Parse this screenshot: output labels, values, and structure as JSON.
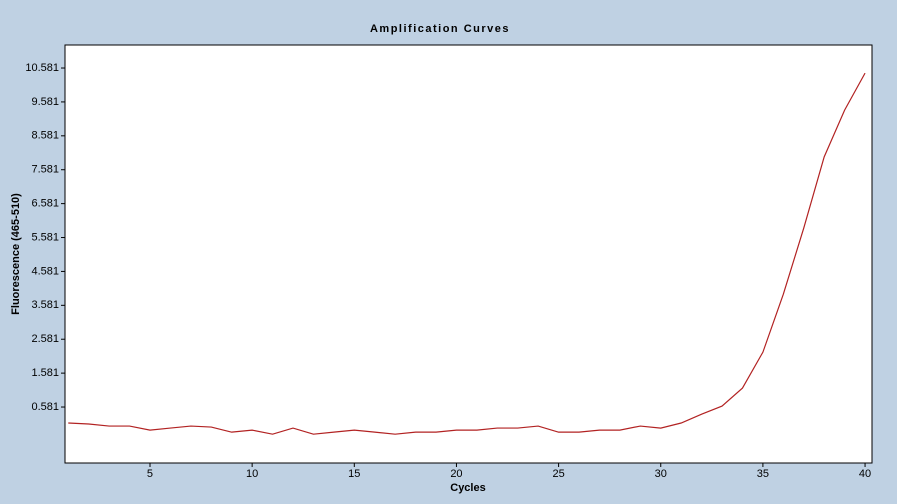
{
  "chart_data": {
    "type": "line",
    "title": "Amplification Curves",
    "x_label": "Cycles",
    "y_label": "Fluorescence (465-510)",
    "x": [
      1,
      2,
      3,
      4,
      5,
      6,
      7,
      8,
      9,
      10,
      11,
      12,
      13,
      14,
      15,
      16,
      17,
      18,
      19,
      20,
      21,
      22,
      23,
      24,
      25,
      26,
      27,
      28,
      29,
      30,
      31,
      32,
      33,
      34,
      35,
      36,
      37,
      38,
      39,
      40
    ],
    "series": [
      {
        "color": "#b22222",
        "values": [
          0.11,
          0.08,
          0.02,
          0.02,
          -0.1,
          -0.04,
          0.02,
          -0.01,
          -0.16,
          -0.1,
          -0.22,
          -0.04,
          -0.22,
          -0.16,
          -0.1,
          -0.16,
          -0.22,
          -0.16,
          -0.16,
          -0.1,
          -0.1,
          -0.04,
          -0.04,
          0.02,
          -0.16,
          -0.16,
          -0.1,
          -0.1,
          0.02,
          -0.04,
          0.11,
          0.37,
          0.61,
          1.14,
          2.2,
          3.91,
          5.86,
          7.96,
          9.34,
          10.43
        ]
      }
    ],
    "xlim": [
      0.84,
      40.34
    ],
    "xticks": [
      5,
      10,
      15,
      20,
      25,
      30,
      35,
      40
    ],
    "ylim": [
      -1.07,
      11.26
    ],
    "yticks": [
      0.581,
      1.581,
      2.581,
      3.581,
      4.581,
      5.581,
      6.581,
      7.581,
      8.581,
      9.581,
      10.581
    ],
    "grid": false
  }
}
